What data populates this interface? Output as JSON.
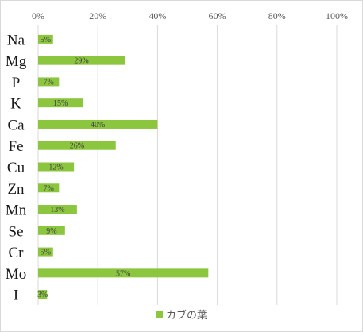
{
  "chart_data": {
    "type": "bar",
    "orientation": "horizontal",
    "categories": [
      "Na",
      "Mg",
      "P",
      "K",
      "Ca",
      "Fe",
      "Cu",
      "Zn",
      "Mn",
      "Se",
      "Cr",
      "Mo",
      "I"
    ],
    "series": [
      {
        "name": "カブの葉",
        "values": [
          5,
          29,
          7,
          15,
          40,
          26,
          12,
          7,
          13,
          9,
          5,
          57,
          3
        ],
        "data_labels": [
          "5%",
          "29%",
          "7%",
          "15%",
          "40%",
          "26%",
          "12%",
          "7%",
          "13%",
          "9%",
          "5%",
          "57%",
          "3%"
        ],
        "color": "#8cc63f"
      }
    ],
    "x_axis": {
      "ticks": [
        "0%",
        "20%",
        "40%",
        "60%",
        "80%",
        "100%"
      ],
      "tick_values": [
        0,
        20,
        40,
        60,
        80,
        100
      ],
      "position": "top"
    },
    "xlim": [
      0,
      100
    ],
    "grid": true,
    "gridline_color": "#d9d9d9",
    "legend": {
      "position": "bottom",
      "entries": [
        "カブの葉"
      ]
    },
    "title": "",
    "xlabel": "",
    "ylabel": ""
  }
}
